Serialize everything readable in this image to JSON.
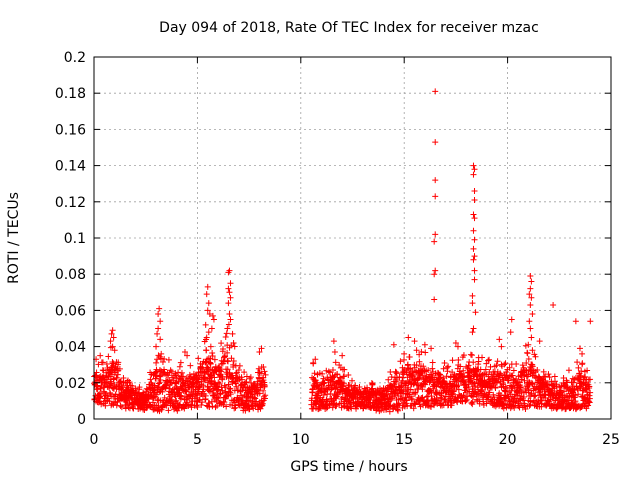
{
  "chart_data": {
    "type": "scatter",
    "title": "Day 094 of 2018, Rate Of TEC Index for receiver mzac",
    "xlabel": "GPS time / hours",
    "ylabel": "ROTI / TECUs",
    "xlim": [
      0,
      25
    ],
    "ylim": [
      0,
      0.2
    ],
    "xticks": [
      0,
      5,
      10,
      15,
      20,
      25
    ],
    "xtick_labels": [
      "0",
      "5",
      "10",
      "15",
      "20",
      "25"
    ],
    "yticks": [
      0,
      0.02,
      0.04,
      0.06,
      0.08,
      0.1,
      0.12,
      0.14,
      0.16,
      0.18,
      0.2
    ],
    "ytick_labels": [
      "0",
      "0.02",
      "0.04",
      "0.06",
      "0.08",
      "0.1",
      "0.12",
      "0.14",
      "0.16",
      "0.18",
      "0.2"
    ],
    "grid": true,
    "marker": "+",
    "colors": {
      "points": "#ff0000",
      "grid": "#a0a0a0",
      "axes": "#000000"
    },
    "data_gap_hours": [
      8.3,
      10.5
    ],
    "series": [
      {
        "name": "ROTI",
        "density_profile": {
          "hours": [
            0.0,
            0.5,
            0.9,
            1.5,
            2.0,
            2.5,
            3.0,
            3.5,
            4.0,
            4.5,
            5.0,
            5.5,
            6.0,
            6.5,
            7.0,
            7.5,
            8.0,
            8.3,
            10.5,
            11.0,
            11.7,
            12.5,
            13.0,
            14.0,
            14.5,
            15.0,
            15.5,
            16.0,
            16.5,
            17.0,
            17.5,
            18.0,
            18.4,
            19.0,
            19.5,
            20.0,
            20.5,
            21.0,
            21.5,
            22.0,
            22.5,
            23.0,
            23.5,
            24.0
          ],
          "typical": [
            0.018,
            0.016,
            0.02,
            0.012,
            0.01,
            0.009,
            0.014,
            0.016,
            0.014,
            0.015,
            0.016,
            0.02,
            0.017,
            0.024,
            0.015,
            0.011,
            0.013,
            0.015,
            0.015,
            0.012,
            0.016,
            0.011,
            0.01,
            0.01,
            0.012,
            0.018,
            0.018,
            0.018,
            0.017,
            0.016,
            0.017,
            0.019,
            0.018,
            0.017,
            0.016,
            0.015,
            0.015,
            0.018,
            0.015,
            0.013,
            0.012,
            0.013,
            0.015,
            0.014
          ],
          "spread": [
            0.011,
            0.011,
            0.016,
            0.008,
            0.006,
            0.006,
            0.017,
            0.014,
            0.012,
            0.012,
            0.012,
            0.02,
            0.014,
            0.024,
            0.013,
            0.008,
            0.012,
            0.012,
            0.012,
            0.01,
            0.012,
            0.008,
            0.007,
            0.008,
            0.012,
            0.016,
            0.015,
            0.014,
            0.013,
            0.011,
            0.012,
            0.012,
            0.013,
            0.012,
            0.012,
            0.012,
            0.011,
            0.02,
            0.011,
            0.009,
            0.009,
            0.011,
            0.013,
            0.01
          ]
        },
        "points": [
          [
            16.5,
            0.181
          ],
          [
            16.5,
            0.153
          ],
          [
            16.5,
            0.132
          ],
          [
            16.5,
            0.123
          ],
          [
            16.5,
            0.102
          ],
          [
            16.45,
            0.098
          ],
          [
            16.5,
            0.082
          ],
          [
            16.45,
            0.08
          ],
          [
            16.45,
            0.066
          ],
          [
            18.35,
            0.14
          ],
          [
            18.4,
            0.138
          ],
          [
            18.35,
            0.135
          ],
          [
            18.4,
            0.126
          ],
          [
            18.4,
            0.121
          ],
          [
            18.35,
            0.113
          ],
          [
            18.4,
            0.111
          ],
          [
            18.35,
            0.104
          ],
          [
            18.4,
            0.099
          ],
          [
            18.35,
            0.094
          ],
          [
            18.4,
            0.09
          ],
          [
            18.35,
            0.088
          ],
          [
            18.4,
            0.082
          ],
          [
            18.4,
            0.077
          ],
          [
            18.3,
            0.068
          ],
          [
            18.3,
            0.064
          ],
          [
            18.45,
            0.059
          ],
          [
            18.35,
            0.05
          ],
          [
            18.3,
            0.048
          ],
          [
            6.55,
            0.082
          ],
          [
            6.5,
            0.081
          ],
          [
            6.6,
            0.075
          ],
          [
            6.5,
            0.072
          ],
          [
            6.55,
            0.07
          ],
          [
            6.6,
            0.067
          ],
          [
            6.5,
            0.064
          ],
          [
            6.55,
            0.058
          ],
          [
            6.6,
            0.055
          ],
          [
            6.45,
            0.05
          ],
          [
            6.7,
            0.047
          ],
          [
            6.75,
            0.042
          ],
          [
            5.5,
            0.073
          ],
          [
            5.45,
            0.069
          ],
          [
            5.55,
            0.064
          ],
          [
            5.5,
            0.06
          ],
          [
            5.6,
            0.058
          ],
          [
            5.75,
            0.057
          ],
          [
            5.8,
            0.055
          ],
          [
            5.4,
            0.052
          ],
          [
            5.7,
            0.05
          ],
          [
            5.55,
            0.048
          ],
          [
            5.45,
            0.045
          ],
          [
            5.65,
            0.04
          ],
          [
            3.15,
            0.061
          ],
          [
            3.1,
            0.058
          ],
          [
            3.2,
            0.054
          ],
          [
            3.1,
            0.05
          ],
          [
            3.05,
            0.047
          ],
          [
            3.2,
            0.044
          ],
          [
            3.0,
            0.04
          ],
          [
            3.25,
            0.036
          ],
          [
            3.05,
            0.033
          ],
          [
            21.1,
            0.079
          ],
          [
            21.15,
            0.076
          ],
          [
            21.1,
            0.072
          ],
          [
            21.05,
            0.069
          ],
          [
            21.15,
            0.067
          ],
          [
            21.1,
            0.063
          ],
          [
            21.2,
            0.058
          ],
          [
            21.05,
            0.054
          ],
          [
            21.1,
            0.05
          ],
          [
            21.15,
            0.045
          ],
          [
            21.0,
            0.041
          ],
          [
            21.2,
            0.038
          ],
          [
            22.2,
            0.063
          ],
          [
            23.3,
            0.054
          ],
          [
            24.0,
            0.054
          ],
          [
            20.2,
            0.055
          ],
          [
            20.15,
            0.048
          ],
          [
            21.55,
            0.043
          ],
          [
            0.9,
            0.049
          ],
          [
            0.85,
            0.047
          ],
          [
            0.95,
            0.045
          ],
          [
            0.8,
            0.043
          ],
          [
            0.9,
            0.04
          ],
          [
            1.0,
            0.038
          ],
          [
            15.2,
            0.045
          ],
          [
            15.5,
            0.043
          ],
          [
            16.0,
            0.041
          ],
          [
            16.3,
            0.039
          ],
          [
            14.5,
            0.041
          ],
          [
            15.6,
            0.038
          ],
          [
            17.5,
            0.042
          ],
          [
            17.6,
            0.04
          ],
          [
            19.6,
            0.044
          ],
          [
            19.7,
            0.04
          ],
          [
            11.6,
            0.043
          ],
          [
            11.65,
            0.037
          ],
          [
            12.0,
            0.035
          ],
          [
            4.4,
            0.037
          ],
          [
            4.5,
            0.035
          ],
          [
            8.1,
            0.039
          ],
          [
            8.0,
            0.037
          ],
          [
            23.5,
            0.039
          ],
          [
            23.6,
            0.036
          ],
          [
            10.7,
            0.033
          ],
          [
            10.6,
            0.031
          ],
          [
            0.3,
            0.035
          ],
          [
            0.1,
            0.033
          ]
        ]
      }
    ]
  }
}
